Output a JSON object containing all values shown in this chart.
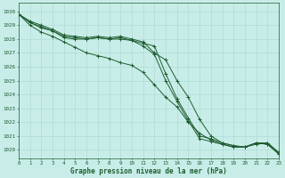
{
  "x": [
    0,
    1,
    2,
    3,
    4,
    5,
    6,
    7,
    8,
    9,
    10,
    11,
    12,
    13,
    14,
    15,
    16,
    17,
    18,
    19,
    20,
    21,
    22,
    23
  ],
  "line1": [
    1029.8,
    1029.3,
    1029.0,
    1028.7,
    1028.3,
    1028.2,
    1028.1,
    1028.2,
    1028.1,
    1028.2,
    1028.0,
    1027.8,
    1027.0,
    1026.5,
    1025.0,
    1023.8,
    1022.2,
    1021.0,
    1020.5,
    1020.3,
    1020.2,
    1020.5,
    1020.4,
    1019.7
  ],
  "line2": [
    1029.8,
    1029.2,
    1028.9,
    1028.6,
    1028.2,
    1028.1,
    1028.0,
    1028.1,
    1028.0,
    1028.1,
    1027.9,
    1027.7,
    1027.5,
    1025.5,
    1023.7,
    1022.3,
    1021.0,
    1020.8,
    1020.5,
    1020.3,
    1020.2,
    1020.5,
    1020.5,
    1019.8
  ],
  "line3": [
    1029.8,
    1029.2,
    1028.8,
    1028.6,
    1028.1,
    1028.0,
    1028.0,
    1028.1,
    1028.0,
    1028.0,
    1027.9,
    1027.5,
    1026.9,
    1025.0,
    1023.5,
    1022.1,
    1020.8,
    1020.6,
    1020.4,
    1020.2,
    1020.2,
    1020.4,
    1020.5,
    1019.8
  ],
  "line4": [
    1029.8,
    1029.0,
    1028.5,
    1028.2,
    1027.8,
    1027.4,
    1027.0,
    1026.8,
    1026.6,
    1026.3,
    1026.1,
    1025.6,
    1024.7,
    1023.8,
    1023.1,
    1022.0,
    1021.2,
    1020.7,
    1020.4,
    1020.2,
    1020.2,
    1020.5,
    1020.4,
    1019.7
  ],
  "bg_color": "#c8ede8",
  "grid_color": "#a8d8d0",
  "line_color": "#1e5c30",
  "marker": "+",
  "marker_size": 3.0,
  "line_width": 0.7,
  "ylabel_values": [
    1020,
    1021,
    1022,
    1023,
    1024,
    1025,
    1026,
    1027,
    1028,
    1029,
    1030
  ],
  "xlabel": "Graphe pression niveau de la mer (hPa)",
  "ylim": [
    1019.4,
    1030.6
  ],
  "xlim": [
    0,
    23
  ],
  "axis_label_color": "#1e5c30",
  "tick_color": "#1e5c30",
  "tick_fontsize": 4.2,
  "xlabel_fontsize": 5.5
}
